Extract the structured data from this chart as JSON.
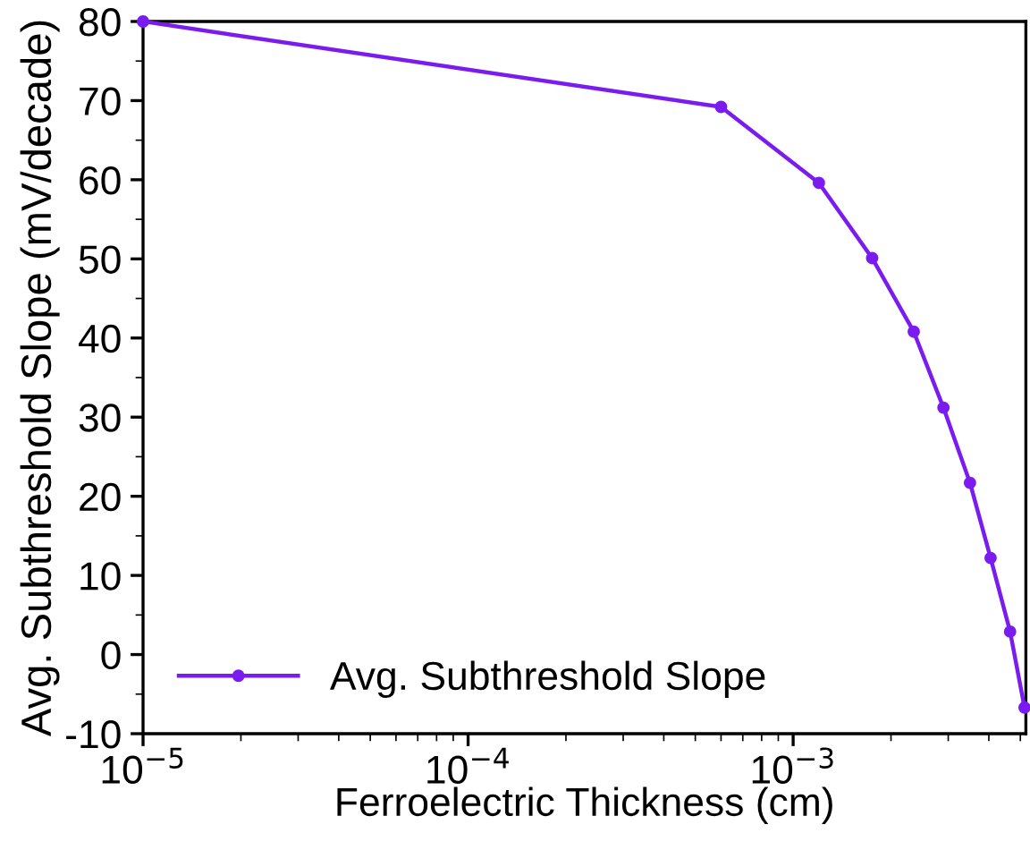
{
  "chart_data": {
    "type": "line",
    "xlabel": "Ferroelectric Thickness (cm)",
    "ylabel": "Avg. Subthreshold Slope (mV/decade)",
    "log": "x",
    "x": [
      1e-05,
      0.0006,
      0.0012,
      0.00175,
      0.00235,
      0.0029,
      0.0035,
      0.00405,
      0.00465,
      0.00515
    ],
    "series": [
      {
        "name": "Avg. Subthreshold Slope",
        "color": "#7a1cf0",
        "values": [
          80,
          69.2,
          59.6,
          50.1,
          40.8,
          31.2,
          21.7,
          12.2,
          2.9,
          -6.7
        ]
      }
    ],
    "xlim": [
      1e-05,
      0.0052
    ],
    "ylim": [
      -10,
      80
    ],
    "xticks": [
      {
        "value": 1e-05,
        "label": "10$^{−5}$"
      },
      {
        "value": 0.0001,
        "label": "10$^{−4}$"
      },
      {
        "value": 0.001,
        "label": "10$^{−3}$"
      }
    ],
    "yticks": [
      -10,
      0,
      10,
      20,
      30,
      40,
      50,
      60,
      70,
      80
    ],
    "marker": "circle",
    "line_style": "solid",
    "legend": "bottom left",
    "grid": false
  }
}
